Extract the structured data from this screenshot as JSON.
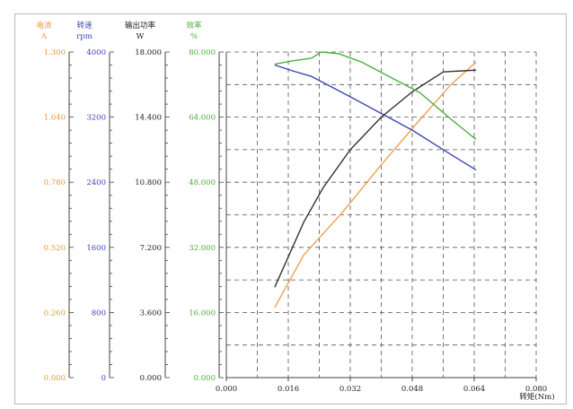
{
  "chart_data": {
    "type": "line",
    "xlabel": "转矩(Nm)",
    "xlim": [
      0,
      0.08
    ],
    "xticks": [
      "0.000",
      "0.016",
      "0.032",
      "0.048",
      "0.064",
      "0.080"
    ],
    "grid": true,
    "axes": [
      {
        "key": "current",
        "name": "电流",
        "unit": "A",
        "color": "#e8963c",
        "range": [
          0,
          1.3
        ],
        "ticks": [
          "0.000",
          "0.260",
          "0.520",
          "0.780",
          "1.040",
          "1.300"
        ]
      },
      {
        "key": "speed",
        "name": "转速",
        "unit": "rpm",
        "color": "#3c46b4",
        "range": [
          0,
          4000
        ],
        "ticks": [
          "0",
          "800",
          "1600",
          "2400",
          "3200",
          "4000"
        ]
      },
      {
        "key": "power",
        "name": "输出功率",
        "unit": "W",
        "color": "#222222",
        "range": [
          0,
          18
        ],
        "ticks": [
          "0.000",
          "3.600",
          "7.200",
          "10.800",
          "14.400",
          "18.000"
        ]
      },
      {
        "key": "efficiency",
        "name": "效率",
        "unit": "%",
        "color": "#4caf38",
        "range": [
          0,
          80
        ],
        "ticks": [
          "0.000",
          "16.000",
          "32.000",
          "48.000",
          "64.000",
          "80.000"
        ]
      }
    ],
    "series": [
      {
        "axis": "current",
        "color": "#f0a050",
        "x": [
          0.0125,
          0.02,
          0.03,
          0.04,
          0.05,
          0.058,
          0.0645
        ],
        "y": [
          0.28,
          0.49,
          0.66,
          0.85,
          1.03,
          1.17,
          1.26
        ]
      },
      {
        "axis": "speed",
        "color": "#3c46b4",
        "x": [
          0.0125,
          0.017,
          0.022,
          0.032,
          0.048,
          0.058,
          0.0645
        ],
        "y": [
          3840,
          3770,
          3700,
          3450,
          3040,
          2740,
          2550
        ]
      },
      {
        "axis": "power",
        "color": "#333333",
        "x": [
          0.0125,
          0.02,
          0.025,
          0.032,
          0.04,
          0.048,
          0.056,
          0.0645
        ],
        "y": [
          5.0,
          8.6,
          10.5,
          12.6,
          14.4,
          15.8,
          16.9,
          17.0
        ]
      },
      {
        "axis": "efficiency",
        "color": "#4cb040",
        "x": [
          0.0125,
          0.017,
          0.022,
          0.0245,
          0.029,
          0.035,
          0.042,
          0.05,
          0.058,
          0.0645
        ],
        "y": [
          77,
          77.8,
          78.5,
          80,
          79.6,
          77.5,
          74,
          70,
          63.5,
          58.5
        ]
      }
    ]
  }
}
